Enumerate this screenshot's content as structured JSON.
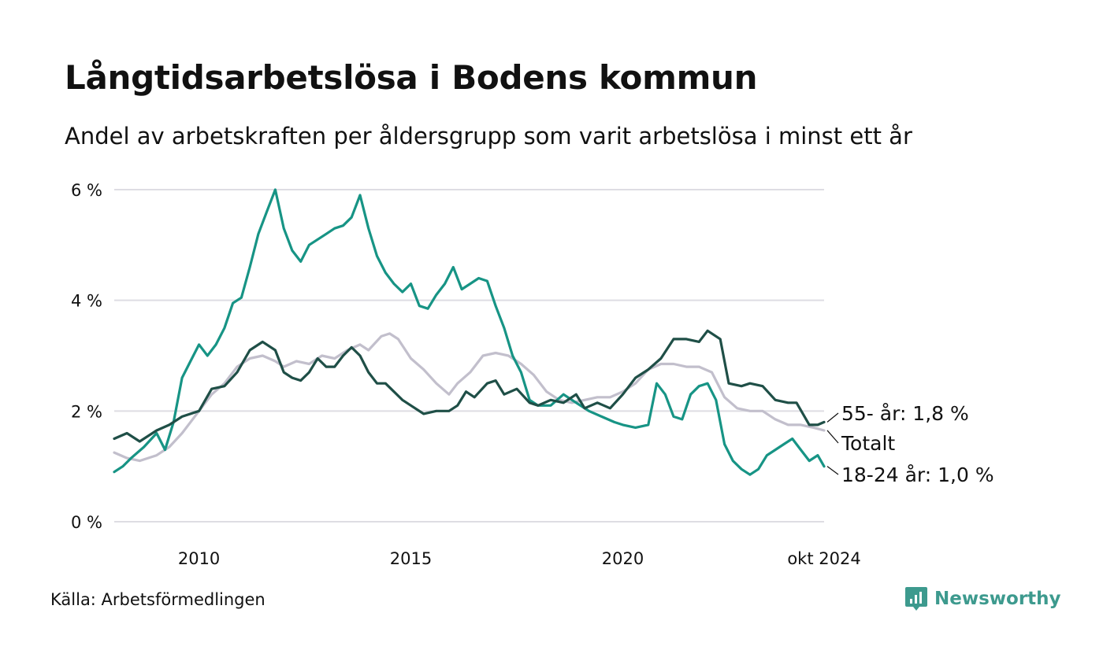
{
  "title": "Långtidsarbetslösa i Bodens kommun",
  "subtitle": "Andel av arbetskraften per åldersgrupp som varit arbetslösa i minst ett år",
  "source": "Källa: Arbetsförmedlingen",
  "brand": {
    "name": "Newsworthy",
    "icon": "newsworthy-logo-icon",
    "color": "#3d9a8e"
  },
  "chart_data": {
    "type": "line",
    "title": "Långtidsarbetslösa i Bodens kommun",
    "xlabel": "",
    "ylabel": "",
    "xlim": [
      2008.0,
      2024.75
    ],
    "ylim": [
      0,
      6
    ],
    "y_ticks": [
      0,
      2,
      4,
      6
    ],
    "y_tick_labels": [
      "0 %",
      "2 %",
      "4 %",
      "6 %"
    ],
    "x_ticks": [
      2010,
      2015,
      2020,
      2024.75
    ],
    "x_tick_labels": [
      "2010",
      "2015",
      "2020",
      "okt 2024"
    ],
    "grid": true,
    "series": [
      {
        "name": "55- år",
        "end_label": "55- år: 1,8 %",
        "color": "#1f4f47",
        "points": [
          [
            2008.0,
            1.5
          ],
          [
            2008.3,
            1.6
          ],
          [
            2008.6,
            1.45
          ],
          [
            2009.0,
            1.65
          ],
          [
            2009.3,
            1.75
          ],
          [
            2009.6,
            1.9
          ],
          [
            2010.0,
            2.0
          ],
          [
            2010.3,
            2.4
          ],
          [
            2010.6,
            2.45
          ],
          [
            2010.9,
            2.7
          ],
          [
            2011.2,
            3.1
          ],
          [
            2011.5,
            3.25
          ],
          [
            2011.8,
            3.1
          ],
          [
            2012.0,
            2.7
          ],
          [
            2012.2,
            2.6
          ],
          [
            2012.4,
            2.55
          ],
          [
            2012.6,
            2.7
          ],
          [
            2012.8,
            2.95
          ],
          [
            2013.0,
            2.8
          ],
          [
            2013.2,
            2.8
          ],
          [
            2013.4,
            3.0
          ],
          [
            2013.6,
            3.15
          ],
          [
            2013.8,
            3.0
          ],
          [
            2014.0,
            2.7
          ],
          [
            2014.2,
            2.5
          ],
          [
            2014.4,
            2.5
          ],
          [
            2014.6,
            2.35
          ],
          [
            2014.8,
            2.2
          ],
          [
            2015.0,
            2.1
          ],
          [
            2015.3,
            1.95
          ],
          [
            2015.6,
            2.0
          ],
          [
            2015.9,
            2.0
          ],
          [
            2016.1,
            2.1
          ],
          [
            2016.3,
            2.35
          ],
          [
            2016.5,
            2.25
          ],
          [
            2016.8,
            2.5
          ],
          [
            2017.0,
            2.55
          ],
          [
            2017.2,
            2.3
          ],
          [
            2017.5,
            2.4
          ],
          [
            2017.8,
            2.15
          ],
          [
            2018.0,
            2.1
          ],
          [
            2018.3,
            2.2
          ],
          [
            2018.6,
            2.15
          ],
          [
            2018.9,
            2.3
          ],
          [
            2019.1,
            2.05
          ],
          [
            2019.4,
            2.15
          ],
          [
            2019.7,
            2.05
          ],
          [
            2020.0,
            2.3
          ],
          [
            2020.3,
            2.6
          ],
          [
            2020.6,
            2.75
          ],
          [
            2020.9,
            2.95
          ],
          [
            2021.2,
            3.3
          ],
          [
            2021.5,
            3.3
          ],
          [
            2021.8,
            3.25
          ],
          [
            2022.0,
            3.45
          ],
          [
            2022.3,
            3.3
          ],
          [
            2022.5,
            2.5
          ],
          [
            2022.8,
            2.45
          ],
          [
            2023.0,
            2.5
          ],
          [
            2023.3,
            2.45
          ],
          [
            2023.6,
            2.2
          ],
          [
            2023.9,
            2.15
          ],
          [
            2024.1,
            2.15
          ],
          [
            2024.4,
            1.75
          ],
          [
            2024.6,
            1.75
          ],
          [
            2024.75,
            1.8
          ]
        ]
      },
      {
        "name": "Totalt",
        "end_label": "Totalt",
        "color": "#c2bfcc",
        "points": [
          [
            2008.0,
            1.25
          ],
          [
            2008.3,
            1.15
          ],
          [
            2008.6,
            1.1
          ],
          [
            2009.0,
            1.2
          ],
          [
            2009.3,
            1.35
          ],
          [
            2009.6,
            1.6
          ],
          [
            2010.0,
            2.0
          ],
          [
            2010.3,
            2.3
          ],
          [
            2010.6,
            2.5
          ],
          [
            2010.9,
            2.8
          ],
          [
            2011.2,
            2.95
          ],
          [
            2011.5,
            3.0
          ],
          [
            2011.8,
            2.9
          ],
          [
            2012.0,
            2.8
          ],
          [
            2012.3,
            2.9
          ],
          [
            2012.6,
            2.85
          ],
          [
            2012.9,
            3.0
          ],
          [
            2013.2,
            2.95
          ],
          [
            2013.5,
            3.1
          ],
          [
            2013.8,
            3.2
          ],
          [
            2014.0,
            3.1
          ],
          [
            2014.3,
            3.35
          ],
          [
            2014.5,
            3.4
          ],
          [
            2014.7,
            3.3
          ],
          [
            2015.0,
            2.95
          ],
          [
            2015.3,
            2.75
          ],
          [
            2015.6,
            2.5
          ],
          [
            2015.9,
            2.3
          ],
          [
            2016.1,
            2.5
          ],
          [
            2016.4,
            2.7
          ],
          [
            2016.7,
            3.0
          ],
          [
            2017.0,
            3.05
          ],
          [
            2017.3,
            3.0
          ],
          [
            2017.6,
            2.85
          ],
          [
            2017.9,
            2.65
          ],
          [
            2018.2,
            2.35
          ],
          [
            2018.5,
            2.2
          ],
          [
            2018.8,
            2.15
          ],
          [
            2019.1,
            2.2
          ],
          [
            2019.4,
            2.25
          ],
          [
            2019.7,
            2.25
          ],
          [
            2020.0,
            2.35
          ],
          [
            2020.3,
            2.5
          ],
          [
            2020.6,
            2.75
          ],
          [
            2020.9,
            2.85
          ],
          [
            2021.2,
            2.85
          ],
          [
            2021.5,
            2.8
          ],
          [
            2021.8,
            2.8
          ],
          [
            2022.1,
            2.7
          ],
          [
            2022.4,
            2.25
          ],
          [
            2022.7,
            2.05
          ],
          [
            2023.0,
            2.0
          ],
          [
            2023.3,
            2.0
          ],
          [
            2023.6,
            1.85
          ],
          [
            2023.9,
            1.75
          ],
          [
            2024.2,
            1.75
          ],
          [
            2024.5,
            1.7
          ],
          [
            2024.75,
            1.65
          ]
        ]
      },
      {
        "name": "18-24 år",
        "end_label": "18-24 år: 1,0 %",
        "color": "#179485",
        "points": [
          [
            2008.0,
            0.9
          ],
          [
            2008.2,
            1.0
          ],
          [
            2008.4,
            1.15
          ],
          [
            2008.7,
            1.35
          ],
          [
            2009.0,
            1.6
          ],
          [
            2009.2,
            1.3
          ],
          [
            2009.4,
            1.8
          ],
          [
            2009.6,
            2.6
          ],
          [
            2009.8,
            2.9
          ],
          [
            2010.0,
            3.2
          ],
          [
            2010.2,
            3.0
          ],
          [
            2010.4,
            3.2
          ],
          [
            2010.6,
            3.5
          ],
          [
            2010.8,
            3.95
          ],
          [
            2011.0,
            4.05
          ],
          [
            2011.2,
            4.6
          ],
          [
            2011.4,
            5.2
          ],
          [
            2011.6,
            5.6
          ],
          [
            2011.8,
            6.0
          ],
          [
            2012.0,
            5.3
          ],
          [
            2012.2,
            4.9
          ],
          [
            2012.4,
            4.7
          ],
          [
            2012.6,
            5.0
          ],
          [
            2012.8,
            5.1
          ],
          [
            2013.0,
            5.2
          ],
          [
            2013.2,
            5.3
          ],
          [
            2013.4,
            5.35
          ],
          [
            2013.6,
            5.5
          ],
          [
            2013.8,
            5.9
          ],
          [
            2014.0,
            5.3
          ],
          [
            2014.2,
            4.8
          ],
          [
            2014.4,
            4.5
          ],
          [
            2014.6,
            4.3
          ],
          [
            2014.8,
            4.15
          ],
          [
            2015.0,
            4.3
          ],
          [
            2015.2,
            3.9
          ],
          [
            2015.4,
            3.85
          ],
          [
            2015.6,
            4.1
          ],
          [
            2015.8,
            4.3
          ],
          [
            2016.0,
            4.6
          ],
          [
            2016.2,
            4.2
          ],
          [
            2016.4,
            4.3
          ],
          [
            2016.6,
            4.4
          ],
          [
            2016.8,
            4.35
          ],
          [
            2017.0,
            3.9
          ],
          [
            2017.2,
            3.5
          ],
          [
            2017.4,
            3.0
          ],
          [
            2017.6,
            2.7
          ],
          [
            2017.8,
            2.2
          ],
          [
            2018.0,
            2.1
          ],
          [
            2018.3,
            2.1
          ],
          [
            2018.6,
            2.3
          ],
          [
            2018.9,
            2.15
          ],
          [
            2019.2,
            2.0
          ],
          [
            2019.5,
            1.9
          ],
          [
            2019.8,
            1.8
          ],
          [
            2020.0,
            1.75
          ],
          [
            2020.3,
            1.7
          ],
          [
            2020.6,
            1.75
          ],
          [
            2020.8,
            2.5
          ],
          [
            2021.0,
            2.3
          ],
          [
            2021.2,
            1.9
          ],
          [
            2021.4,
            1.85
          ],
          [
            2021.6,
            2.3
          ],
          [
            2021.8,
            2.45
          ],
          [
            2022.0,
            2.5
          ],
          [
            2022.2,
            2.2
          ],
          [
            2022.4,
            1.4
          ],
          [
            2022.6,
            1.1
          ],
          [
            2022.8,
            0.95
          ],
          [
            2023.0,
            0.85
          ],
          [
            2023.2,
            0.95
          ],
          [
            2023.4,
            1.2
          ],
          [
            2023.6,
            1.3
          ],
          [
            2023.8,
            1.4
          ],
          [
            2024.0,
            1.5
          ],
          [
            2024.2,
            1.3
          ],
          [
            2024.4,
            1.1
          ],
          [
            2024.6,
            1.2
          ],
          [
            2024.75,
            1.0
          ]
        ]
      }
    ]
  }
}
